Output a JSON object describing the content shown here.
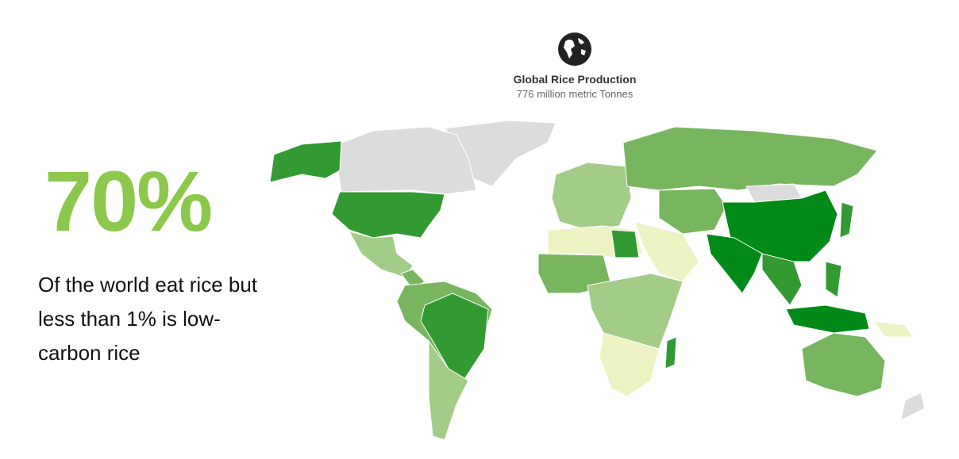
{
  "stat": {
    "value": "70%",
    "caption": "Of the world eat rice but less than 1% is low-carbon rice"
  },
  "header": {
    "icon": "globe-icon",
    "title": "Global Rice Production",
    "amount": "776 million metric Tonnes"
  },
  "colors": {
    "accent": "#8cc84b",
    "highest": "#008a17",
    "high": "#339933",
    "medium": "#77b55e",
    "low": "#a3cc88",
    "lowest": "#eef3c4",
    "no_data": "#dcdcdc"
  }
}
